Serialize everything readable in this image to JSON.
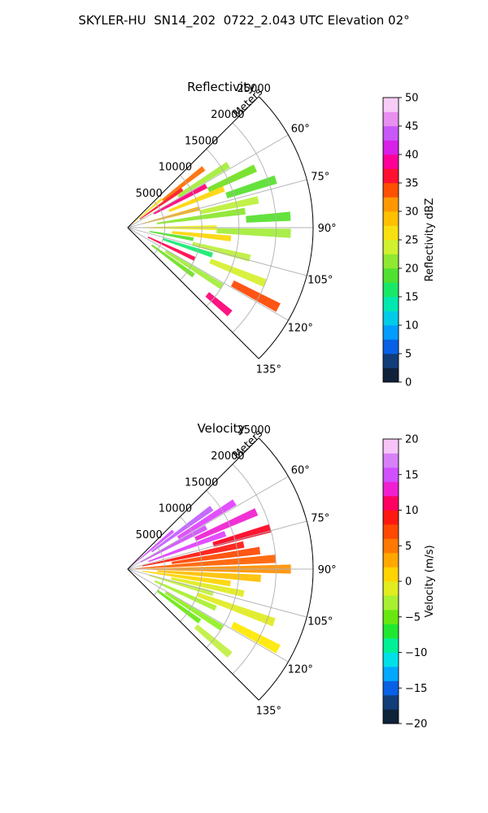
{
  "figure": {
    "title": "SKYLER-HU  SN14_202  0722_2.043 UTC Elevation 02°"
  },
  "chart_data": [
    {
      "type": "heatmap",
      "subtype": "polar-sector (PPI)",
      "title": "Reflectivity",
      "radial_label": "Meters",
      "radial_ticks": [
        5000,
        10000,
        15000,
        20000,
        25000
      ],
      "radial_tick_labels": [
        "5000",
        "10000",
        "15000",
        "20000",
        "25000"
      ],
      "r_max": 25000,
      "angle_ticks": [
        60,
        75,
        90,
        105,
        120,
        135
      ],
      "angle_tick_labels": [
        "60°",
        "75°",
        "90°",
        "105°",
        "120°",
        "135°"
      ],
      "angle_range": [
        45,
        135
      ],
      "grid": true,
      "colorbar": {
        "label": "Reflectivity dBZ",
        "min": 0,
        "max": 50,
        "ticks": [
          0,
          5,
          10,
          15,
          20,
          25,
          30,
          35,
          40,
          45,
          50
        ],
        "tick_labels": [
          "0",
          "5",
          "10",
          "15",
          "20",
          "25",
          "30",
          "35",
          "40",
          "45",
          "50"
        ]
      },
      "cells": [
        {
          "a": 50,
          "r0": 500,
          "r1": 6000,
          "v": 26
        },
        {
          "a": 52,
          "r0": 6000,
          "r1": 13000,
          "v": 33
        },
        {
          "a": 55,
          "r0": 2000,
          "r1": 9000,
          "v": 36
        },
        {
          "a": 58,
          "r0": 8000,
          "r1": 16000,
          "v": 22
        },
        {
          "a": 62,
          "r0": 4000,
          "r1": 12000,
          "v": 38
        },
        {
          "a": 65,
          "r0": 12000,
          "r1": 19000,
          "v": 20
        },
        {
          "a": 68,
          "r0": 6000,
          "r1": 14000,
          "v": 27
        },
        {
          "a": 72,
          "r0": 14000,
          "r1": 21000,
          "v": 19
        },
        {
          "a": 75,
          "r0": 2000,
          "r1": 10000,
          "v": 30
        },
        {
          "a": 78,
          "r0": 10000,
          "r1": 18000,
          "v": 23
        },
        {
          "a": 82,
          "r0": 4000,
          "r1": 16000,
          "v": 21
        },
        {
          "a": 86,
          "r0": 16000,
          "r1": 22000,
          "v": 19
        },
        {
          "a": 90,
          "r0": 1000,
          "r1": 12000,
          "v": 25
        },
        {
          "a": 92,
          "r0": 12000,
          "r1": 22000,
          "v": 22
        },
        {
          "a": 96,
          "r0": 6000,
          "r1": 14000,
          "v": 27
        },
        {
          "a": 100,
          "r0": 3000,
          "r1": 9000,
          "v": 19
        },
        {
          "a": 104,
          "r0": 9000,
          "r1": 17000,
          "v": 23
        },
        {
          "a": 108,
          "r0": 5000,
          "r1": 12000,
          "v": 16
        },
        {
          "a": 112,
          "r0": 12000,
          "r1": 20000,
          "v": 24
        },
        {
          "a": 115,
          "r0": 3000,
          "r1": 10000,
          "v": 37
        },
        {
          "a": 118,
          "r0": 16000,
          "r1": 23000,
          "v": 34
        },
        {
          "a": 122,
          "r0": 6000,
          "r1": 15000,
          "v": 22
        },
        {
          "a": 126,
          "r0": 4000,
          "r1": 11000,
          "v": 20
        },
        {
          "a": 130,
          "r0": 14000,
          "r1": 18000,
          "v": 38
        }
      ]
    },
    {
      "type": "heatmap",
      "subtype": "polar-sector (PPI)",
      "title": "Velocity",
      "radial_label": "Meters",
      "radial_ticks": [
        5000,
        10000,
        15000,
        20000,
        25000
      ],
      "radial_tick_labels": [
        "5000",
        "10000",
        "15000",
        "20000",
        "25000"
      ],
      "r_max": 25000,
      "angle_ticks": [
        60,
        75,
        90,
        105,
        120,
        135
      ],
      "angle_tick_labels": [
        "60°",
        "75°",
        "90°",
        "105°",
        "120°",
        "135°"
      ],
      "angle_range": [
        45,
        135
      ],
      "grid": true,
      "colorbar": {
        "label": "Velocity (m/s)",
        "min": -20,
        "max": 20,
        "ticks": [
          -20,
          -15,
          -10,
          -5,
          0,
          5,
          10,
          15,
          20
        ],
        "tick_labels": [
          "−20",
          "−15",
          "−10",
          "−5",
          "0",
          "5",
          "10",
          "15",
          "20"
        ]
      },
      "cells": [
        {
          "a": 50,
          "r0": 500,
          "r1": 8000,
          "v": 15
        },
        {
          "a": 54,
          "r0": 4000,
          "r1": 14000,
          "v": 16
        },
        {
          "a": 58,
          "r0": 8000,
          "r1": 17000,
          "v": 14
        },
        {
          "a": 62,
          "r0": 2000,
          "r1": 12000,
          "v": 15
        },
        {
          "a": 66,
          "r0": 10000,
          "r1": 19000,
          "v": 13
        },
        {
          "a": 70,
          "r0": 3000,
          "r1": 14000,
          "v": 14
        },
        {
          "a": 74,
          "r0": 12000,
          "r1": 20000,
          "v": 10
        },
        {
          "a": 78,
          "r0": 2000,
          "r1": 16000,
          "v": 9
        },
        {
          "a": 82,
          "r0": 6000,
          "r1": 18000,
          "v": 7
        },
        {
          "a": 86,
          "r0": 1000,
          "r1": 20000,
          "v": 6
        },
        {
          "a": 90,
          "r0": 2000,
          "r1": 22000,
          "v": 4
        },
        {
          "a": 94,
          "r0": 4000,
          "r1": 18000,
          "v": 2
        },
        {
          "a": 98,
          "r0": 2000,
          "r1": 14000,
          "v": 1
        },
        {
          "a": 102,
          "r0": 6000,
          "r1": 16000,
          "v": -1
        },
        {
          "a": 106,
          "r0": 3000,
          "r1": 12000,
          "v": -2
        },
        {
          "a": 110,
          "r0": 10000,
          "r1": 21000,
          "v": -1
        },
        {
          "a": 114,
          "r0": 4000,
          "r1": 13000,
          "v": -3
        },
        {
          "a": 118,
          "r0": 16000,
          "r1": 23000,
          "v": 0
        },
        {
          "a": 122,
          "r0": 6000,
          "r1": 15000,
          "v": -4
        },
        {
          "a": 126,
          "r0": 5000,
          "r1": 12000,
          "v": -5
        },
        {
          "a": 130,
          "r0": 12000,
          "r1": 18000,
          "v": -2
        }
      ]
    }
  ]
}
